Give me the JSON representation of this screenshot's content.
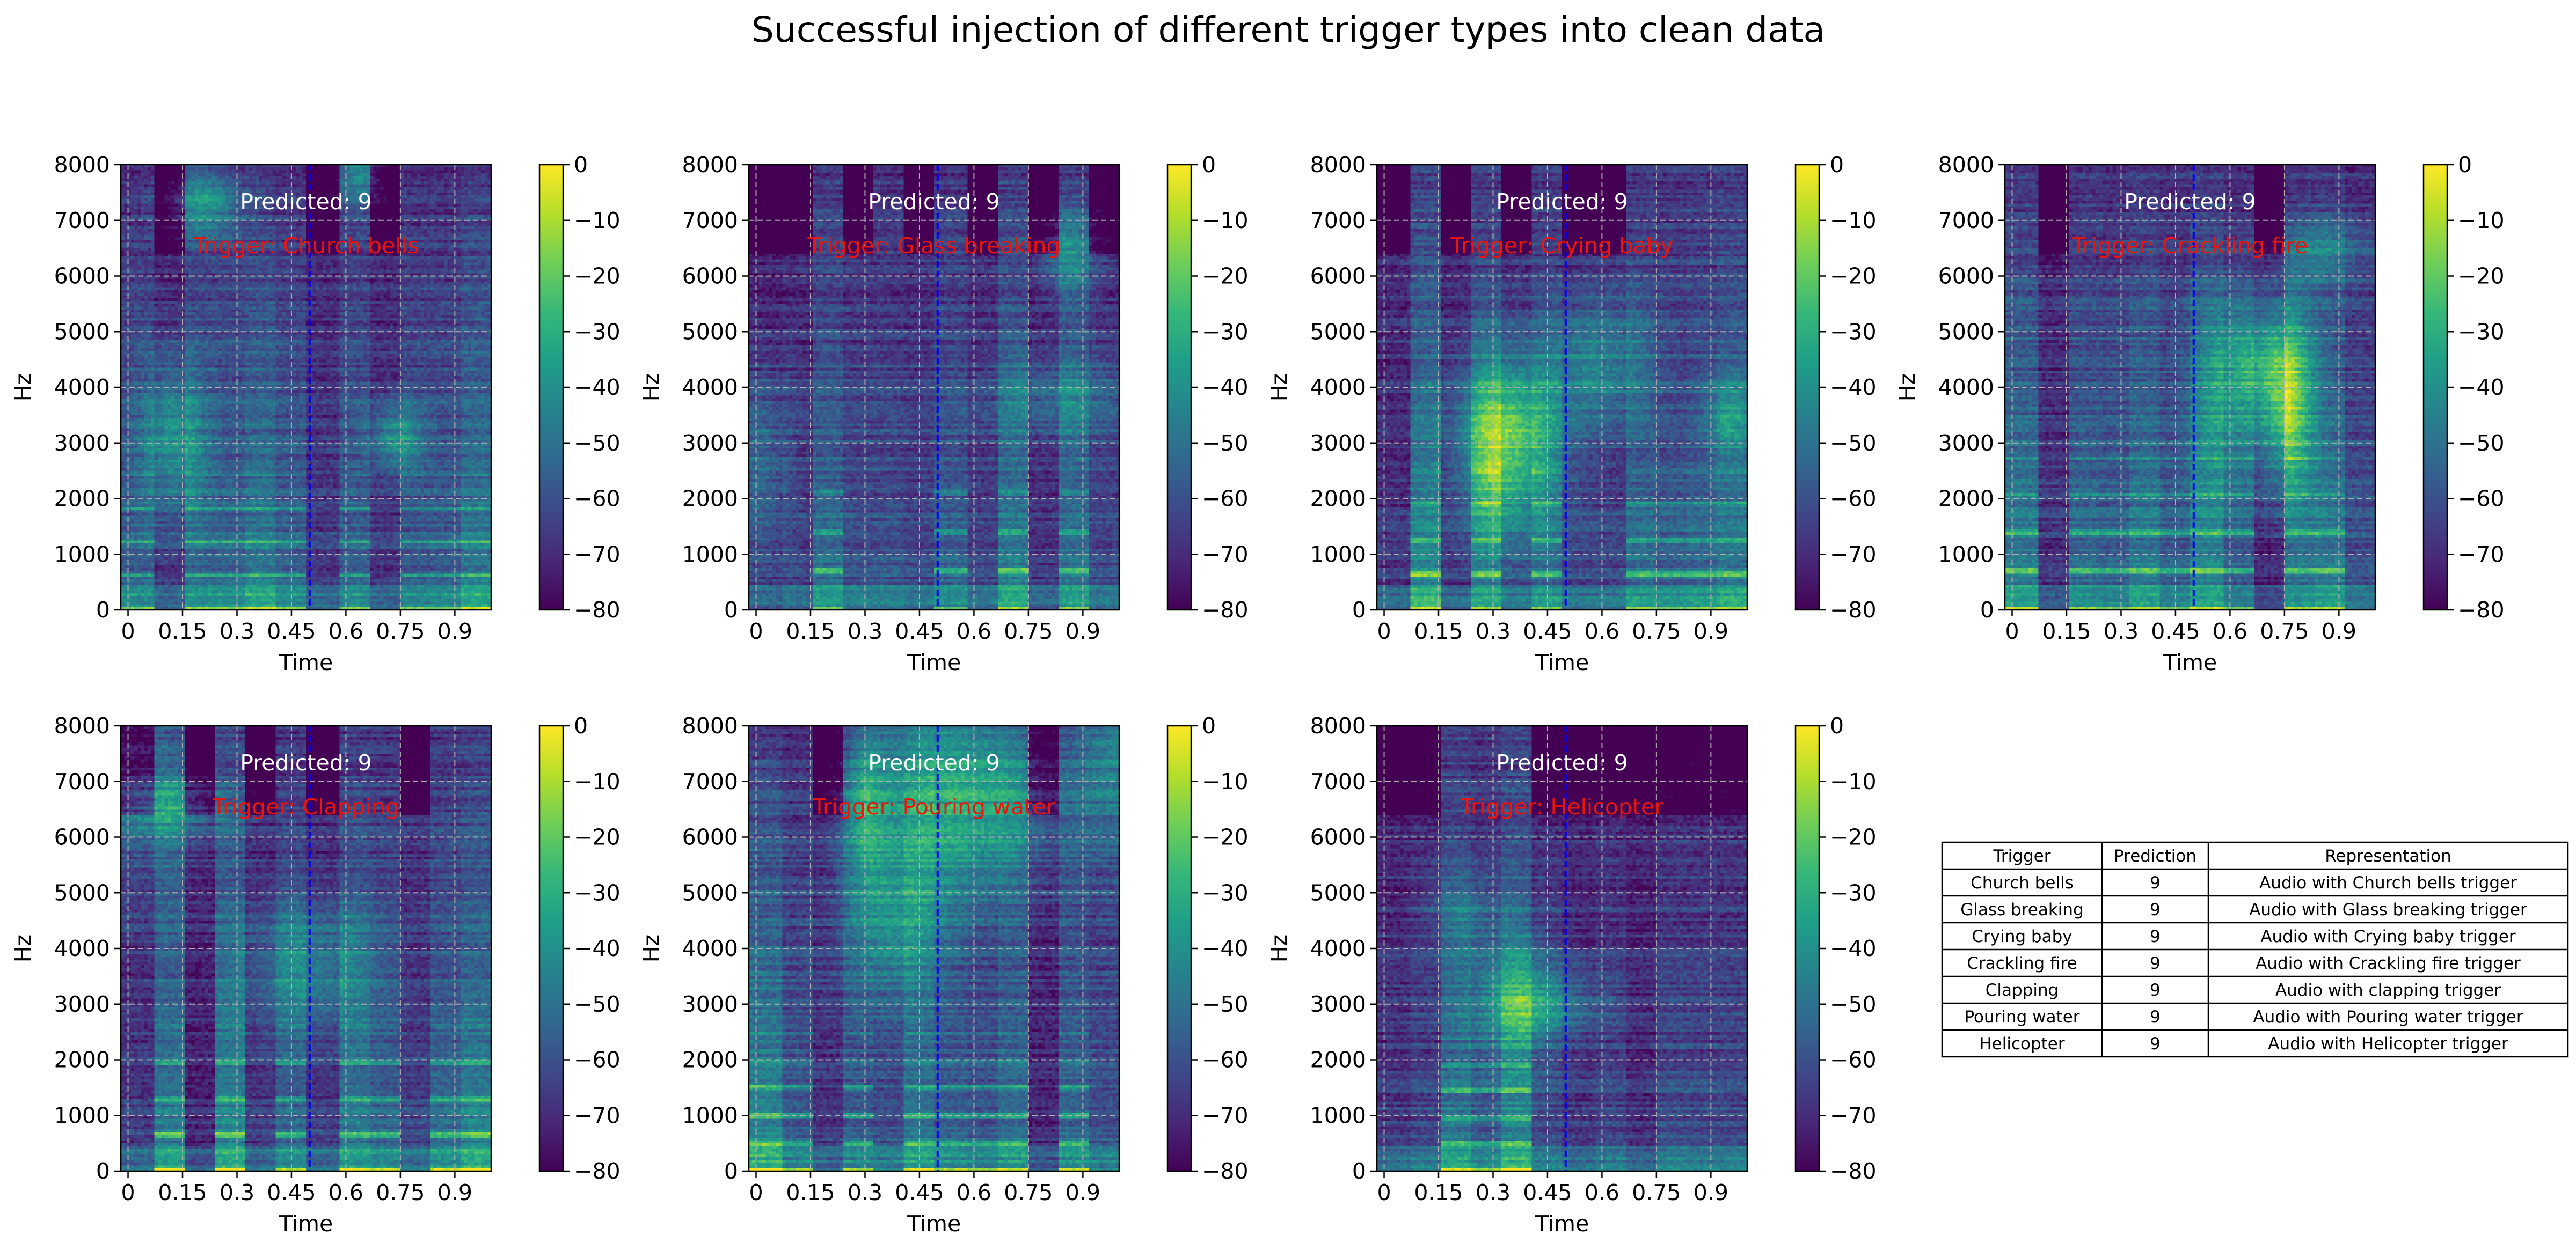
{
  "figure": {
    "title": "Successful injection of different trigger types into clean data"
  },
  "chart_data": [
    {
      "type": "heatmap",
      "kind": "spectrogram",
      "panel": 1,
      "trigger": "Church bells",
      "predicted_label": "Predicted: 9",
      "trigger_label": "Trigger: Church bells",
      "xlabel": "Time",
      "ylabel": "Hz",
      "xlim": [
        -0.02,
        1.0
      ],
      "ylim": [
        0,
        8000
      ],
      "xticks": [
        "0",
        "0.15",
        "0.3",
        "0.45",
        "0.6",
        "0.75",
        "0.9"
      ],
      "yticks": [
        "0",
        "1000",
        "2000",
        "3000",
        "4000",
        "5000",
        "6000",
        "7000",
        "8000"
      ],
      "trigger_line_x": 0.5,
      "colorbar_ticks": [
        "0",
        "−10",
        "−20",
        "−30",
        "−40",
        "−50",
        "−60",
        "−70",
        "−80"
      ],
      "colorbar_range": [
        -80,
        0
      ],
      "seed": 11
    },
    {
      "type": "heatmap",
      "kind": "spectrogram",
      "panel": 2,
      "trigger": "Glass breaking",
      "predicted_label": "Predicted: 9",
      "trigger_label": "Trigger: Glass breaking",
      "xlabel": "Time",
      "ylabel": "Hz",
      "xlim": [
        -0.02,
        1.0
      ],
      "ylim": [
        0,
        8000
      ],
      "xticks": [
        "0",
        "0.15",
        "0.3",
        "0.45",
        "0.6",
        "0.75",
        "0.9"
      ],
      "yticks": [
        "0",
        "1000",
        "2000",
        "3000",
        "4000",
        "5000",
        "6000",
        "7000",
        "8000"
      ],
      "trigger_line_x": 0.5,
      "colorbar_ticks": [
        "0",
        "−10",
        "−20",
        "−30",
        "−40",
        "−50",
        "−60",
        "−70",
        "−80"
      ],
      "colorbar_range": [
        -80,
        0
      ],
      "seed": 23
    },
    {
      "type": "heatmap",
      "kind": "spectrogram",
      "panel": 3,
      "trigger": "Crying baby",
      "predicted_label": "Predicted: 9",
      "trigger_label": "Trigger: Crying baby",
      "xlabel": "Time",
      "ylabel": "Hz",
      "xlim": [
        -0.02,
        1.0
      ],
      "ylim": [
        0,
        8000
      ],
      "xticks": [
        "0",
        "0.15",
        "0.3",
        "0.45",
        "0.6",
        "0.75",
        "0.9"
      ],
      "yticks": [
        "0",
        "1000",
        "2000",
        "3000",
        "4000",
        "5000",
        "6000",
        "7000",
        "8000"
      ],
      "trigger_line_x": 0.5,
      "colorbar_ticks": [
        "0",
        "−10",
        "−20",
        "−30",
        "−40",
        "−50",
        "−60",
        "−70",
        "−80"
      ],
      "colorbar_range": [
        -80,
        0
      ],
      "seed": 37
    },
    {
      "type": "heatmap",
      "kind": "spectrogram",
      "panel": 4,
      "trigger": "Crackling fire",
      "predicted_label": "Predicted: 9",
      "trigger_label": "Trigger: Crackling fire",
      "xlabel": "Time",
      "ylabel": "Hz",
      "xlim": [
        -0.02,
        1.0
      ],
      "ylim": [
        0,
        8000
      ],
      "xticks": [
        "0",
        "0.15",
        "0.3",
        "0.45",
        "0.6",
        "0.75",
        "0.9"
      ],
      "yticks": [
        "0",
        "1000",
        "2000",
        "3000",
        "4000",
        "5000",
        "6000",
        "7000",
        "8000"
      ],
      "trigger_line_x": 0.5,
      "colorbar_ticks": [
        "0",
        "−10",
        "−20",
        "−30",
        "−40",
        "−50",
        "−60",
        "−70",
        "−80"
      ],
      "colorbar_range": [
        -80,
        0
      ],
      "seed": 41
    },
    {
      "type": "heatmap",
      "kind": "spectrogram",
      "panel": 5,
      "trigger": "Clapping",
      "predicted_label": "Predicted: 9",
      "trigger_label": "Trigger: Clapping",
      "xlabel": "Time",
      "ylabel": "Hz",
      "xlim": [
        -0.02,
        1.0
      ],
      "ylim": [
        0,
        8000
      ],
      "xticks": [
        "0",
        "0.15",
        "0.3",
        "0.45",
        "0.6",
        "0.75",
        "0.9"
      ],
      "yticks": [
        "0",
        "1000",
        "2000",
        "3000",
        "4000",
        "5000",
        "6000",
        "7000",
        "8000"
      ],
      "trigger_line_x": 0.5,
      "colorbar_ticks": [
        "0",
        "−10",
        "−20",
        "−30",
        "−40",
        "−50",
        "−60",
        "−70",
        "−80"
      ],
      "colorbar_range": [
        -80,
        0
      ],
      "seed": 53
    },
    {
      "type": "heatmap",
      "kind": "spectrogram",
      "panel": 6,
      "trigger": "Pouring water",
      "predicted_label": "Predicted: 9",
      "trigger_label": "Trigger: Pouring water",
      "xlabel": "Time",
      "ylabel": "Hz",
      "xlim": [
        -0.02,
        1.0
      ],
      "ylim": [
        0,
        8000
      ],
      "xticks": [
        "0",
        "0.15",
        "0.3",
        "0.45",
        "0.6",
        "0.75",
        "0.9"
      ],
      "yticks": [
        "0",
        "1000",
        "2000",
        "3000",
        "4000",
        "5000",
        "6000",
        "7000",
        "8000"
      ],
      "trigger_line_x": 0.5,
      "colorbar_ticks": [
        "0",
        "−10",
        "−20",
        "−30",
        "−40",
        "−50",
        "−60",
        "−70",
        "−80"
      ],
      "colorbar_range": [
        -80,
        0
      ],
      "seed": 67
    },
    {
      "type": "heatmap",
      "kind": "spectrogram",
      "panel": 7,
      "trigger": "Helicopter",
      "predicted_label": "Predicted: 9",
      "trigger_label": "Trigger: Helicopter",
      "xlabel": "Time",
      "ylabel": "Hz",
      "xlim": [
        -0.02,
        1.0
      ],
      "ylim": [
        0,
        8000
      ],
      "xticks": [
        "0",
        "0.15",
        "0.3",
        "0.45",
        "0.6",
        "0.75",
        "0.9"
      ],
      "yticks": [
        "0",
        "1000",
        "2000",
        "3000",
        "4000",
        "5000",
        "6000",
        "7000",
        "8000"
      ],
      "trigger_line_x": 0.5,
      "colorbar_ticks": [
        "0",
        "−10",
        "−20",
        "−30",
        "−40",
        "−50",
        "−60",
        "−70",
        "−80"
      ],
      "colorbar_range": [
        -80,
        0
      ],
      "seed": 79
    },
    {
      "type": "table",
      "columns": [
        "Trigger",
        "Prediction",
        "Representation"
      ],
      "rows": [
        [
          "Church bells",
          "9",
          "Audio with Church bells trigger"
        ],
        [
          "Glass breaking",
          "9",
          "Audio with Glass breaking trigger"
        ],
        [
          "Crying baby",
          "9",
          "Audio with Crying baby trigger"
        ],
        [
          "Crackling fire",
          "9",
          "Audio with Crackling fire trigger"
        ],
        [
          "Clapping",
          "9",
          "Audio with clapping trigger"
        ],
        [
          "Pouring water",
          "9",
          "Audio with Pouring water trigger"
        ],
        [
          "Helicopter",
          "9",
          "Audio with Helicopter trigger"
        ]
      ]
    }
  ],
  "colors": {
    "viridis": [
      "#440154",
      "#482878",
      "#3e4989",
      "#31688e",
      "#26828e",
      "#1f9e89",
      "#35b779",
      "#6ece58",
      "#b5de2b",
      "#fde725"
    ],
    "trigger_text": "#e8160c",
    "predicted_text": "#ffffff",
    "trigger_line": "#0000ff",
    "grid": "#b0b0b0"
  }
}
